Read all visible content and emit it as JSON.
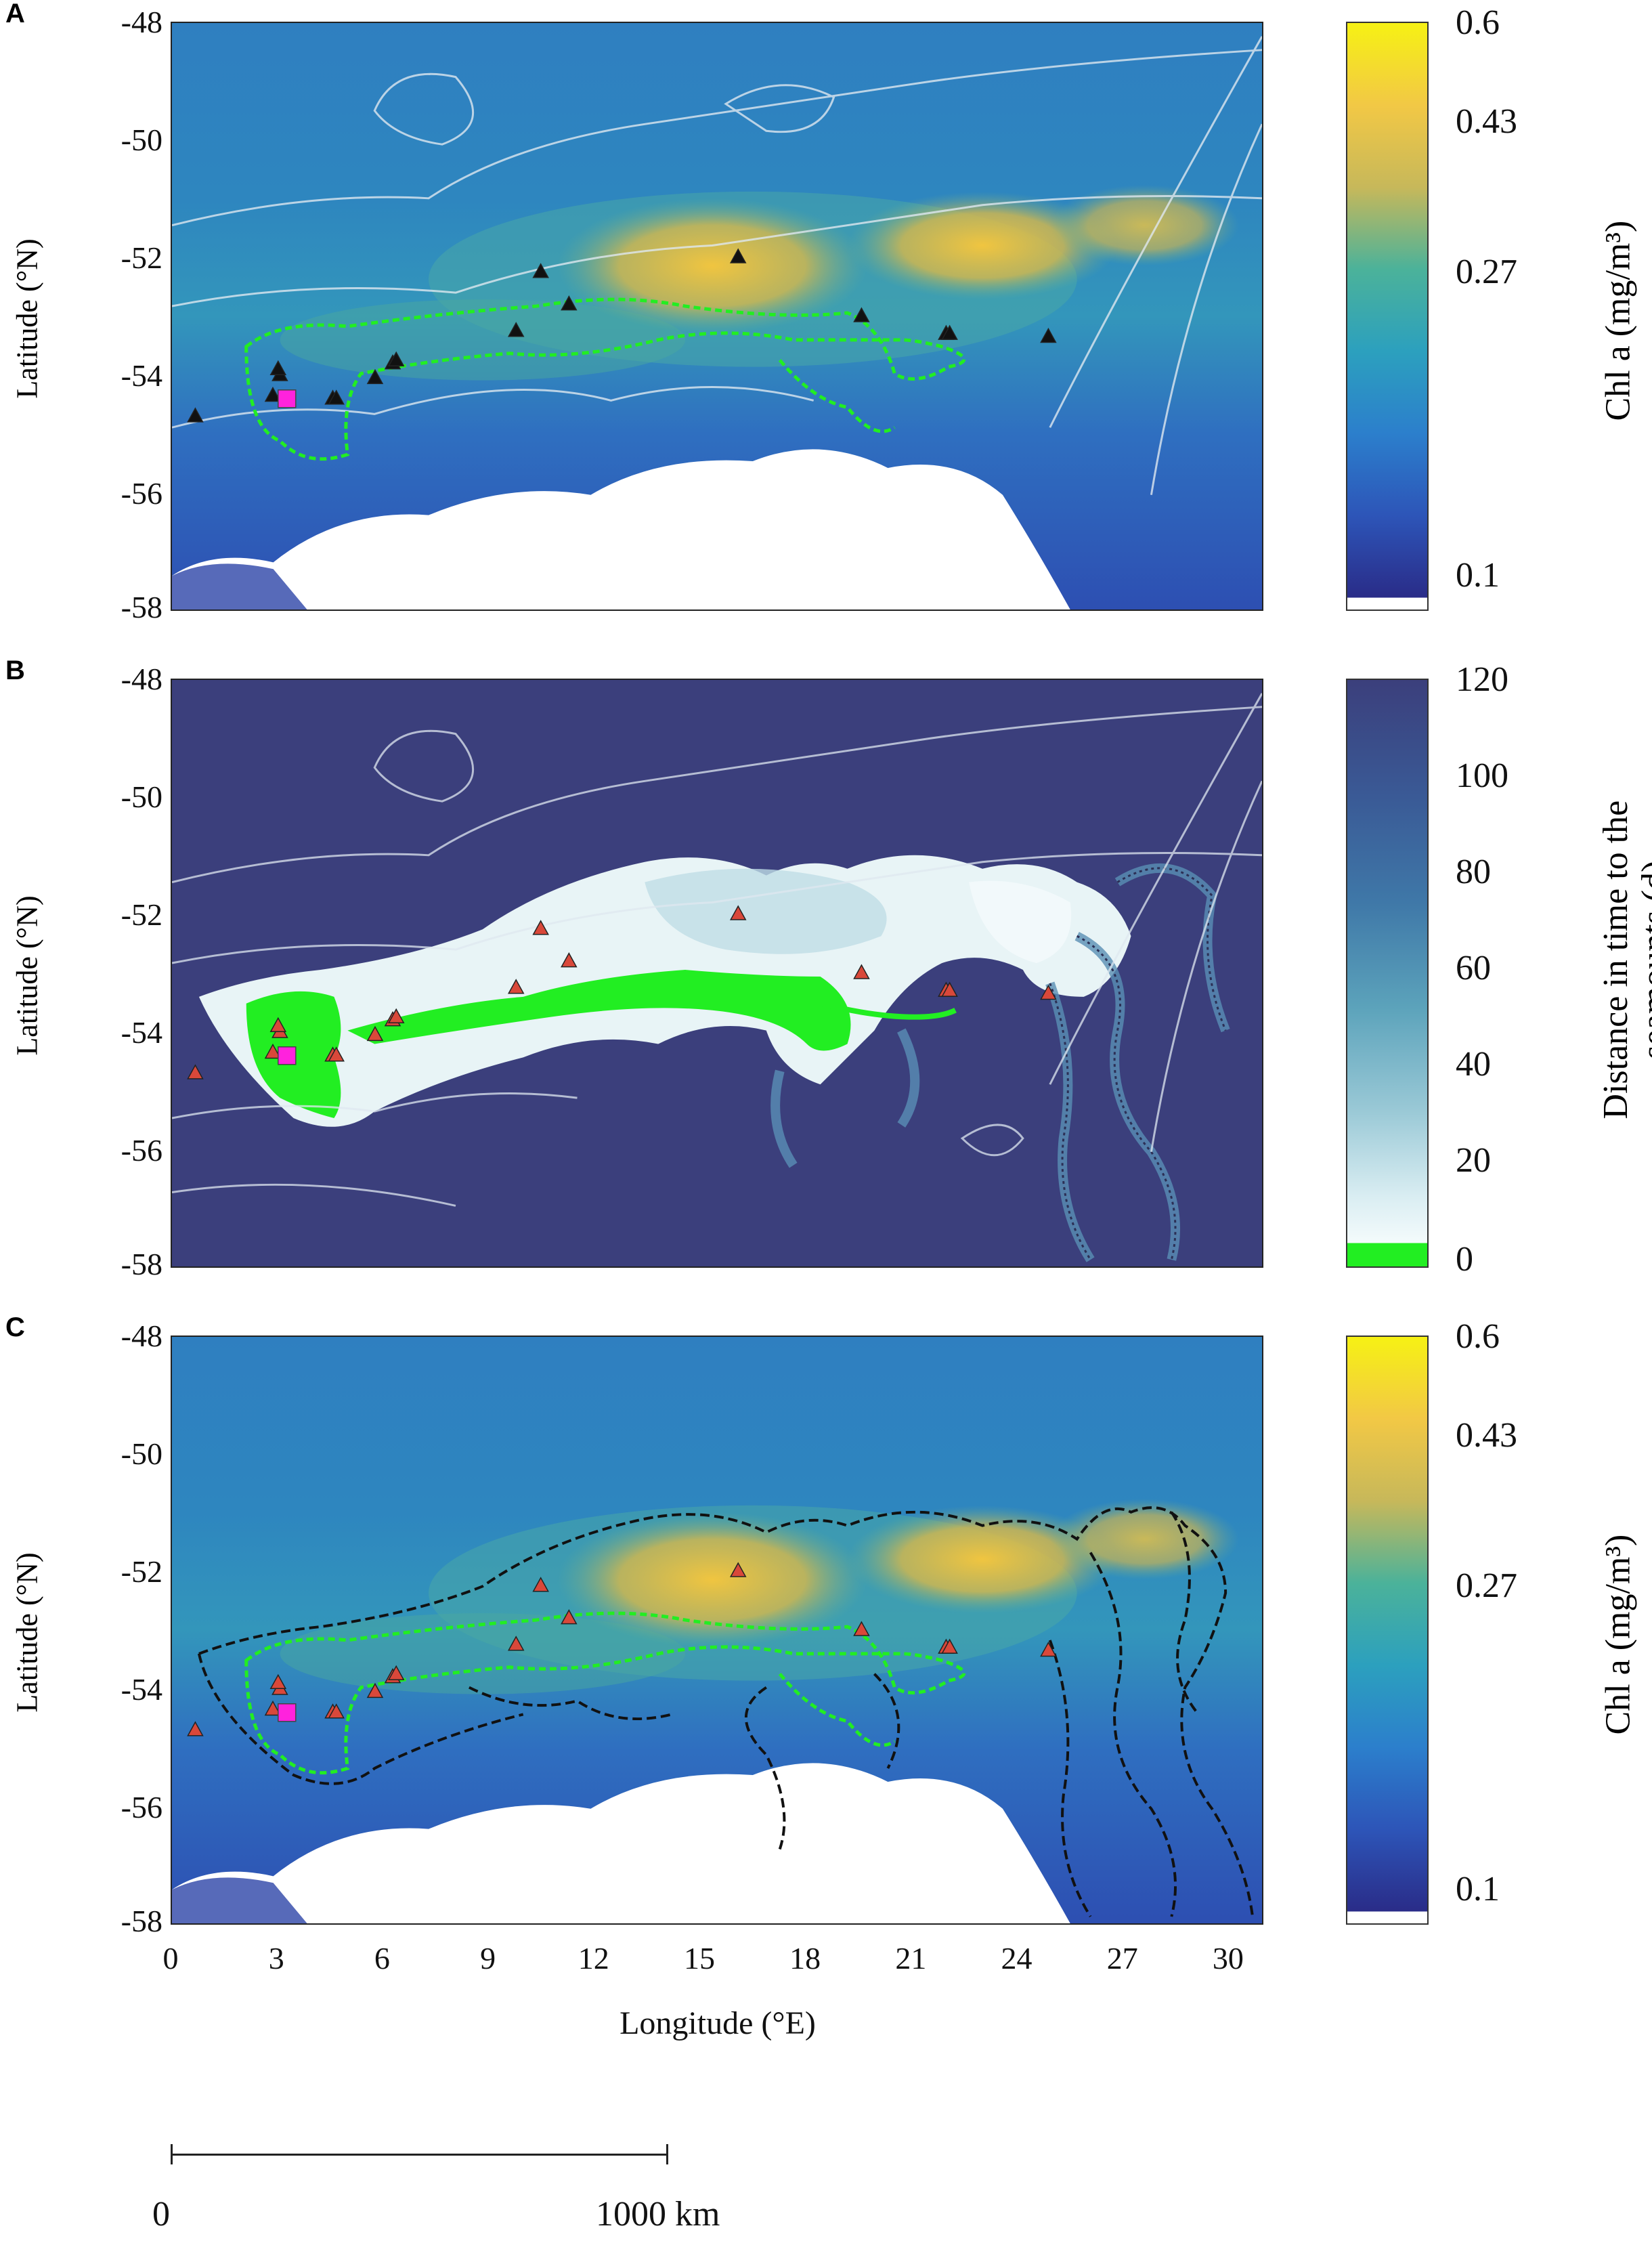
{
  "panels": [
    {
      "label": "A",
      "ylabel": "Latitude (°N)",
      "yticks": [
        "-48",
        "-50",
        "-52",
        "-54",
        "-56",
        "-58"
      ],
      "colorbar": {
        "ticks": [
          "0.6",
          "0.43",
          "0.27",
          "0.1"
        ],
        "label": "Chl a (mg/m³)"
      }
    },
    {
      "label": "B",
      "ylabel": "Latitude (°N)",
      "yticks": [
        "-48",
        "-50",
        "-52",
        "-54",
        "-56",
        "-58"
      ],
      "colorbar": {
        "ticks": [
          "120",
          "100",
          "80",
          "60",
          "40",
          "20",
          "0"
        ],
        "label": "Distance in time to the seamounts (d)"
      }
    },
    {
      "label": "C",
      "ylabel": "Latitude (°N)",
      "yticks": [
        "-48",
        "-50",
        "-52",
        "-54",
        "-56",
        "-58"
      ],
      "colorbar": {
        "ticks": [
          "0.6",
          "0.43",
          "0.27",
          "0.1"
        ],
        "label": "Chl a (mg/m³)"
      }
    }
  ],
  "xaxis": {
    "label": "Longitude (°E)",
    "ticks": [
      "0",
      "3",
      "6",
      "9",
      "12",
      "15",
      "18",
      "21",
      "24",
      "27",
      "30"
    ]
  },
  "scalebar": {
    "left": "0",
    "right": "1000 km"
  },
  "colors": {
    "chl_low": "#2a2c88",
    "chl_mid": "#2aa3b0",
    "chl_high": "#f3d33a",
    "chl_max": "#f6f114",
    "dist_far": "#3b3f7c",
    "dist_near": "#eaf6f8",
    "seamount_green": "#22ee22",
    "marker_magenta": "#ff22dd",
    "marker_red": "#d9483a"
  },
  "markers": {
    "triangles": [
      [
        0.7,
        -54.7
      ],
      [
        2.9,
        -54.35
      ],
      [
        3.1,
        -54.0
      ],
      [
        3.05,
        -53.9
      ],
      [
        4.6,
        -54.4
      ],
      [
        4.7,
        -54.4
      ],
      [
        5.8,
        -54.05
      ],
      [
        6.3,
        -53.8
      ],
      [
        6.4,
        -53.75
      ],
      [
        9.8,
        -53.25
      ],
      [
        10.5,
        -52.25
      ],
      [
        11.3,
        -52.8
      ],
      [
        16.1,
        -52.0
      ],
      [
        19.6,
        -53.0
      ],
      [
        22.0,
        -53.3
      ],
      [
        22.1,
        -53.3
      ],
      [
        24.9,
        -53.35
      ]
    ],
    "square": [
      3.3,
      -54.4
    ]
  }
}
